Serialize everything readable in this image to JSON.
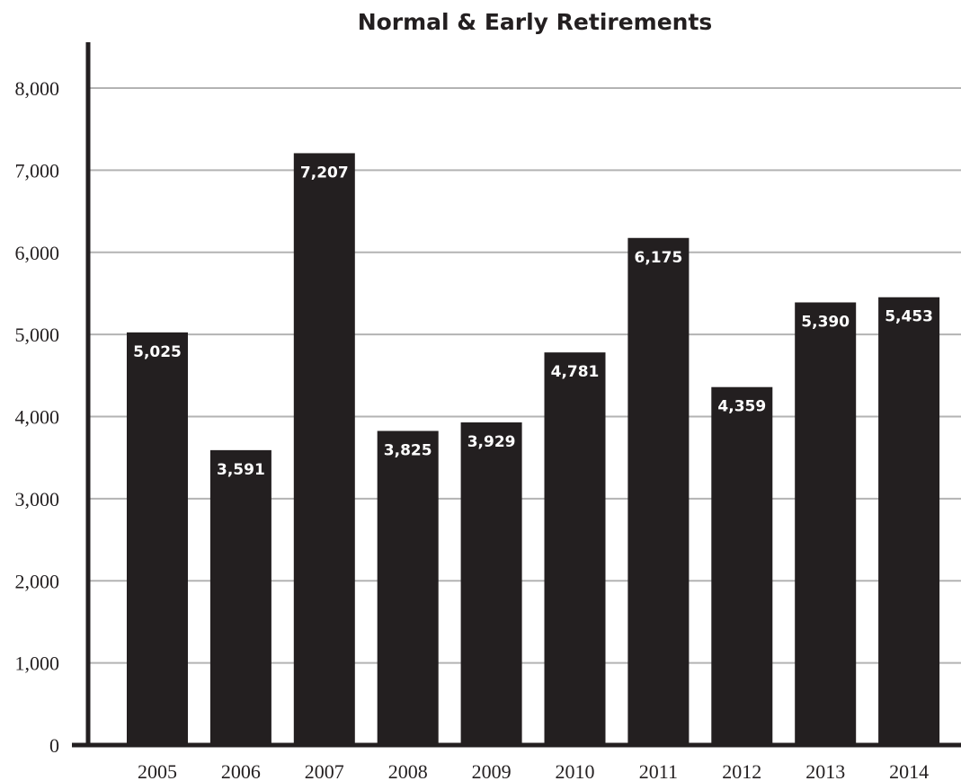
{
  "chart_data": {
    "type": "bar",
    "title": "Normal & Early Retirements",
    "categories": [
      "2005",
      "2006",
      "2007",
      "2008",
      "2009",
      "2010",
      "2011",
      "2012",
      "2013",
      "2014"
    ],
    "values": [
      5025,
      3591,
      7207,
      3825,
      3929,
      4781,
      6175,
      4359,
      5390,
      5453
    ],
    "value_labels": [
      "5,025",
      "3,591",
      "7,207",
      "3,825",
      "3,929",
      "4,781",
      "6,175",
      "4,359",
      "5,390",
      "5,453"
    ],
    "ylim": [
      0,
      8000
    ],
    "yticks": [
      0,
      1000,
      2000,
      3000,
      4000,
      5000,
      6000,
      7000,
      8000
    ],
    "ytick_labels": [
      "0",
      "1,000",
      "2,000",
      "3,000",
      "4,000",
      "5,000",
      "6,000",
      "7,000",
      "8,000"
    ],
    "grid": true,
    "xlabel": "",
    "ylabel": "",
    "colors": {
      "bar": "#231f20",
      "grid": "#b3b3b3",
      "axis": "#231f20",
      "label_text": "#ffffff"
    }
  }
}
